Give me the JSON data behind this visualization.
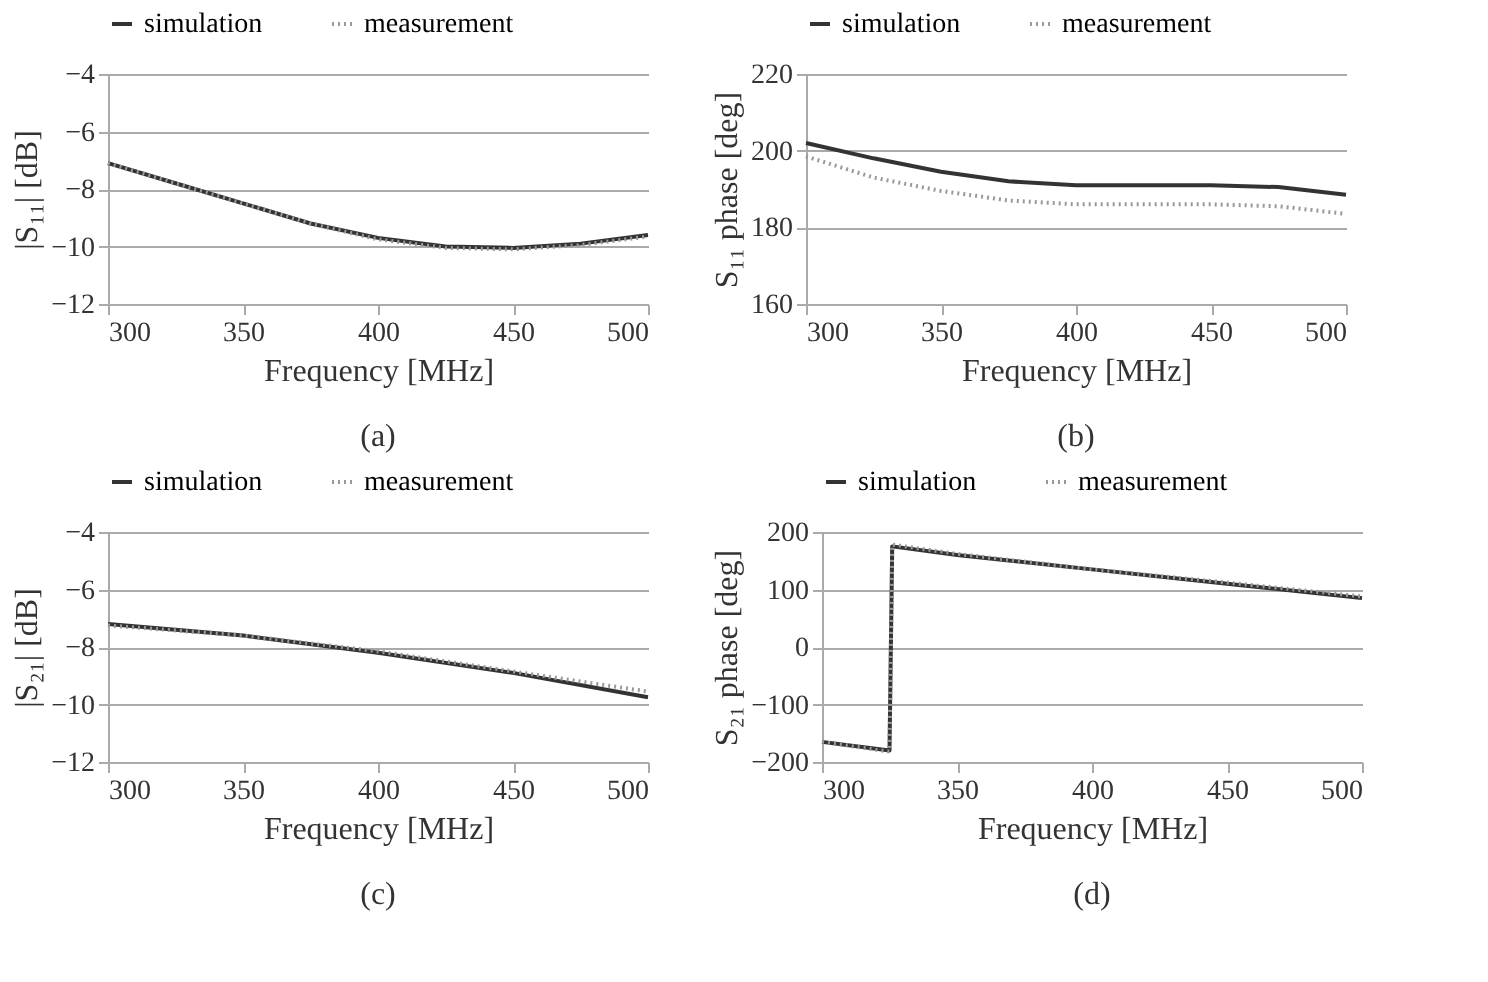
{
  "chart_data": [
    {
      "type": "line",
      "xlabel": "Frequency [MHz]",
      "ylabel": "|S₁₁| [dB]",
      "annotations": [
        "(a)"
      ],
      "xlim": [
        300,
        500
      ],
      "xticks": [
        300,
        350,
        400,
        450,
        500
      ],
      "ylim": [
        -12,
        -4
      ],
      "yticks": [
        -12,
        -10,
        -8,
        -6,
        -4
      ],
      "grid": "y",
      "legend": "top",
      "x": [
        300,
        325,
        350,
        375,
        400,
        425,
        450,
        475,
        500
      ],
      "series": [
        {
          "name": "simulation",
          "color": "#333333",
          "line_style": "solid",
          "values": [
            -7.1,
            -7.8,
            -8.5,
            -9.2,
            -9.7,
            -10.0,
            -10.05,
            -9.9,
            -9.6
          ]
        },
        {
          "name": "measurement",
          "color": "#999999",
          "line_style": "dotted",
          "values": [
            -7.1,
            -7.8,
            -8.5,
            -9.2,
            -9.75,
            -10.05,
            -10.1,
            -9.95,
            -9.65
          ]
        }
      ]
    },
    {
      "type": "line",
      "xlabel": "Frequency [MHz]",
      "ylabel": "S₁₁ phase [deg]",
      "annotations": [
        "(b)"
      ],
      "xlim": [
        300,
        500
      ],
      "xticks": [
        300,
        350,
        400,
        450,
        500
      ],
      "ylim": [
        160,
        220
      ],
      "yticks": [
        160,
        180,
        200,
        220
      ],
      "grid": "y",
      "legend": "top",
      "x": [
        300,
        325,
        350,
        375,
        400,
        425,
        450,
        475,
        500
      ],
      "series": [
        {
          "name": "simulation",
          "color": "#333333",
          "line_style": "solid",
          "values": [
            202,
            198,
            194.5,
            192,
            191,
            191,
            191,
            190.5,
            188.5
          ]
        },
        {
          "name": "measurement",
          "color": "#999999",
          "line_style": "dotted",
          "values": [
            198.5,
            193,
            189.5,
            187,
            186,
            186,
            186,
            185.5,
            183.5
          ]
        }
      ]
    },
    {
      "type": "line",
      "xlabel": "Frequency [MHz]",
      "ylabel": "|S₂₁| [dB]",
      "annotations": [
        "(c)"
      ],
      "xlim": [
        300,
        500
      ],
      "xticks": [
        300,
        350,
        400,
        450,
        500
      ],
      "ylim": [
        -12,
        -4
      ],
      "yticks": [
        -12,
        -10,
        -8,
        -6,
        -4
      ],
      "grid": "y",
      "legend": "top",
      "x": [
        300,
        350,
        400,
        450,
        500
      ],
      "series": [
        {
          "name": "simulation",
          "color": "#333333",
          "line_style": "solid",
          "values": [
            -7.2,
            -7.6,
            -8.2,
            -8.9,
            -9.75
          ]
        },
        {
          "name": "measurement",
          "color": "#999999",
          "line_style": "dotted",
          "values": [
            -7.25,
            -7.6,
            -8.15,
            -8.85,
            -9.55
          ]
        }
      ]
    },
    {
      "type": "line",
      "xlabel": "Frequency [MHz]",
      "ylabel": "S₂₁ phase [deg]",
      "annotations": [
        "(d)"
      ],
      "xlim": [
        300,
        500
      ],
      "xticks": [
        300,
        350,
        400,
        450,
        500
      ],
      "ylim": [
        -200,
        200
      ],
      "yticks": [
        -200,
        -100,
        0,
        100,
        200
      ],
      "grid": "y",
      "legend": "top",
      "x": [
        300,
        325,
        326,
        350,
        400,
        450,
        500
      ],
      "series": [
        {
          "name": "simulation",
          "color": "#333333",
          "line_style": "solid",
          "values": [
            -165,
            -180,
            175,
            160,
            135,
            110,
            85
          ]
        },
        {
          "name": "measurement",
          "color": "#999999",
          "line_style": "dotted",
          "values": [
            -165,
            -182,
            178,
            162,
            135,
            112,
            88
          ]
        }
      ]
    }
  ]
}
